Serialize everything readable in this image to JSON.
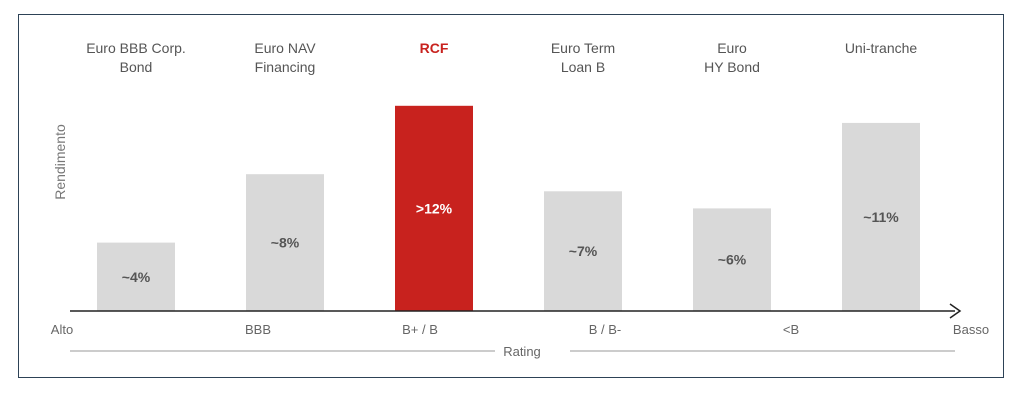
{
  "chart_data": {
    "type": "bar",
    "categories": [
      [
        "Euro BBB Corp.",
        "Bond"
      ],
      [
        "Euro NAV",
        "Financing"
      ],
      [
        "RCF"
      ],
      [
        "Euro Term",
        "Loan B"
      ],
      [
        "Euro",
        "HY Bond"
      ],
      [
        "Uni-tranche"
      ]
    ],
    "values": [
      4,
      8,
      12,
      7,
      6,
      11
    ],
    "value_labels": [
      "~4%",
      "~8%",
      ">12%",
      "~7%",
      "~6%",
      "~11%"
    ],
    "highlight_index": 2,
    "ylabel": "Rendimento",
    "xlabel": "Rating",
    "x_axis_labels": [
      "Alto",
      "BBB",
      "B+ / B",
      "B / B-",
      "<B",
      "Basso"
    ],
    "colors": {
      "bar": "#d9d9d9",
      "highlight": "#c8221e",
      "text": "#555555",
      "axis": "#222222"
    },
    "grid": false
  }
}
